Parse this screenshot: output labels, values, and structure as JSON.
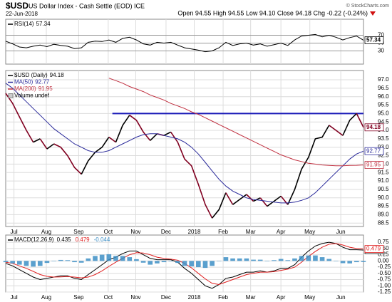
{
  "header": {
    "symbol": "$USD",
    "name": "US Dollar Index - Cash Settle (EOD) ICE",
    "date": "22-Jun-2018",
    "quote": "Open 94.55 High 94.55 Low 94.10 Close 94.18 Chg -0.22 (-0.24%)",
    "credit": "© StockCharts.com"
  },
  "chart_data": [
    {
      "type": "line",
      "xlim": [
        0,
        52
      ],
      "ylim": [
        -3.6,
        110.9
      ],
      "yticks": [
        30,
        50,
        70
      ],
      "grid": true,
      "series": [
        {
          "name": "RSI(14)",
          "color": "#000000",
          "values": [
            55,
            48,
            40,
            38,
            42,
            45,
            41,
            47,
            44,
            42,
            36,
            38,
            52,
            55,
            54,
            58,
            52,
            62,
            65,
            58,
            48,
            45,
            52,
            50,
            52,
            45,
            38,
            35,
            32,
            28,
            30,
            38,
            52,
            44,
            48,
            50,
            45,
            48,
            42,
            46,
            50,
            44,
            58,
            68,
            70,
            72,
            66,
            70,
            65,
            58,
            64,
            68,
            57.34
          ]
        }
      ]
    },
    {
      "type": "line",
      "xlim": [
        0,
        52
      ],
      "ylim": [
        88.3,
        97.55
      ],
      "grid": true,
      "yticks": [
        88.5,
        {
          "value": 89,
          "label": "89.0"
        },
        89.5,
        {
          "value": 90,
          "label": "90.0"
        },
        90.5,
        {
          "value": 91,
          "label": "91.0"
        },
        91.5,
        {
          "value": 92,
          "label": "92.0"
        },
        92.5,
        {
          "value": 93,
          "label": "93.0"
        },
        93.5,
        {
          "value": 94,
          "label": "94.0"
        },
        94.5,
        {
          "value": 95,
          "label": "95.0"
        },
        95.5,
        {
          "value": 96,
          "label": "96.0"
        },
        96.5,
        {
          "value": 97,
          "label": "97.0"
        }
      ],
      "xticks": [
        {
          "value": 1.2,
          "label": "Jul"
        },
        {
          "value": 5.9,
          "label": "Aug"
        },
        {
          "value": 10.6,
          "label": "Sep"
        },
        {
          "value": 14.9,
          "label": "Oct"
        },
        {
          "value": 18.9,
          "label": "Nov"
        },
        {
          "value": 23.3,
          "label": "Dec"
        },
        {
          "value": 27.4,
          "label": "2018"
        },
        {
          "value": 31.6,
          "label": "Feb"
        },
        {
          "value": 35.6,
          "label": "Mar"
        },
        {
          "value": 40,
          "label": "Apr"
        },
        {
          "value": 44.2,
          "label": "May"
        },
        {
          "value": 48.7,
          "label": "Jun"
        }
      ],
      "series": [
        {
          "name": "$USD (Daily)",
          "color": "#800020",
          "up_color": "#000000",
          "values": [
            96.2,
            95.6,
            94.8,
            94.0,
            93.3,
            93.5,
            92.9,
            93.2,
            93.0,
            92.5,
            91.8,
            91.4,
            92.2,
            92.7,
            93.0,
            93.6,
            93.3,
            94.3,
            94.9,
            94.6,
            93.9,
            93.4,
            93.8,
            93.7,
            93.9,
            93.3,
            92.3,
            91.9,
            90.8,
            89.6,
            88.8,
            89.3,
            90.3,
            89.6,
            89.9,
            90.2,
            89.8,
            90.0,
            89.5,
            89.8,
            90.1,
            89.6,
            90.5,
            91.7,
            92.4,
            93.5,
            93.6,
            94.3,
            94.0,
            93.7,
            94.6,
            95.0,
            94.18
          ]
        },
        {
          "name": "MA(50)",
          "color": "#2a2a9a",
          "values": [
            96.8,
            96.5,
            96.1,
            95.7,
            95.3,
            94.9,
            94.5,
            94.1,
            93.8,
            93.5,
            93.2,
            93.0,
            92.8,
            92.7,
            92.7,
            92.8,
            93.0,
            93.2,
            93.4,
            93.6,
            93.75,
            93.8,
            93.8,
            93.7,
            93.6,
            93.5,
            93.3,
            93.0,
            92.6,
            92.1,
            91.6,
            91.1,
            90.7,
            90.4,
            90.2,
            90.0,
            89.9,
            89.85,
            89.8,
            89.75,
            89.7,
            89.7,
            89.75,
            89.85,
            90.0,
            90.3,
            90.7,
            91.1,
            91.5,
            91.9,
            92.3,
            92.6,
            92.77
          ]
        },
        {
          "name": "MA(200)",
          "color": "#c03040",
          "values": [
            null,
            null,
            null,
            null,
            null,
            null,
            null,
            null,
            null,
            null,
            null,
            null,
            null,
            null,
            null,
            97.1,
            96.95,
            96.8,
            96.6,
            96.45,
            96.3,
            96.1,
            95.95,
            95.8,
            95.6,
            95.45,
            95.3,
            95.1,
            94.95,
            94.75,
            94.55,
            94.35,
            94.15,
            93.95,
            93.75,
            93.55,
            93.35,
            93.15,
            92.95,
            92.75,
            92.55,
            92.4,
            92.25,
            92.15,
            92.05,
            92.0,
            91.95,
            91.92,
            91.9,
            91.9,
            91.92,
            91.93,
            91.95
          ]
        }
      ],
      "legend_extra": "Volume undef",
      "reference_line": {
        "y": 95,
        "x": [
          15.5,
          52
        ],
        "color": "#1a1ab8"
      }
    },
    {
      "type": "line",
      "xlim": [
        0,
        52
      ],
      "ylim": [
        -1.25,
        1.04
      ],
      "grid": true,
      "yticks": [
        0.75,
        {
          "value": 0.5,
          "label": "0.50"
        },
        0.25,
        {
          "value": 0,
          "label": "0.00"
        },
        -0.25,
        {
          "value": -0.5,
          "label": "-0.50"
        },
        -0.75,
        {
          "value": -1,
          "label": "-1.00"
        },
        -1.25
      ],
      "xticks": [
        {
          "value": 1.2,
          "label": "Jul"
        },
        {
          "value": 5.9,
          "label": "Aug"
        },
        {
          "value": 10.6,
          "label": "Sep"
        },
        {
          "value": 14.9,
          "label": "Oct"
        },
        {
          "value": 18.9,
          "label": "Nov"
        },
        {
          "value": 23.3,
          "label": "Dec"
        },
        {
          "value": 27.4,
          "label": "2018"
        },
        {
          "value": 31.6,
          "label": "Feb"
        },
        {
          "value": 35.6,
          "label": "Mar"
        },
        {
          "value": 40,
          "label": "Apr"
        },
        {
          "value": 44.2,
          "label": "May"
        },
        {
          "value": 48.7,
          "label": "Jun"
        }
      ],
      "series": [
        {
          "name": "MACD(12,26,9)",
          "color": "#000000",
          "values": [
            -0.1,
            -0.2,
            -0.35,
            -0.5,
            -0.65,
            -0.75,
            -0.7,
            -0.65,
            -0.6,
            -0.6,
            -0.7,
            -0.75,
            -0.55,
            -0.35,
            -0.15,
            0.05,
            0.15,
            0.3,
            0.4,
            0.4,
            0.25,
            0.1,
            0.05,
            0.05,
            0.05,
            -0.05,
            -0.3,
            -0.5,
            -0.75,
            -1.0,
            -1.1,
            -0.95,
            -0.7,
            -0.65,
            -0.55,
            -0.45,
            -0.45,
            -0.4,
            -0.45,
            -0.4,
            -0.3,
            -0.3,
            -0.15,
            0.15,
            0.4,
            0.6,
            0.7,
            0.75,
            0.7,
            0.55,
            0.45,
            0.45,
            0.435
          ]
        },
        {
          "color": "#e02020",
          "values": [
            -0.05,
            -0.1,
            -0.2,
            -0.3,
            -0.42,
            -0.55,
            -0.62,
            -0.65,
            -0.64,
            -0.63,
            -0.65,
            -0.68,
            -0.65,
            -0.55,
            -0.4,
            -0.22,
            -0.05,
            0.1,
            0.25,
            0.33,
            0.32,
            0.25,
            0.15,
            0.1,
            0.07,
            0.03,
            -0.1,
            -0.28,
            -0.5,
            -0.72,
            -0.9,
            -0.95,
            -0.85,
            -0.75,
            -0.65,
            -0.55,
            -0.5,
            -0.45,
            -0.45,
            -0.43,
            -0.38,
            -0.33,
            -0.25,
            -0.05,
            0.18,
            0.38,
            0.55,
            0.67,
            0.7,
            0.64,
            0.55,
            0.5,
            0.479
          ]
        },
        {
          "type": "bar",
          "color": "#3d8fc6",
          "values": [
            -0.05,
            -0.1,
            -0.15,
            -0.2,
            -0.23,
            -0.2,
            -0.08,
            0,
            0.04,
            0.03,
            -0.05,
            -0.07,
            0.1,
            0.2,
            0.25,
            0.27,
            0.2,
            0.2,
            0.15,
            0.07,
            -0.07,
            -0.15,
            -0.1,
            -0.05,
            -0.02,
            -0.08,
            -0.2,
            -0.22,
            -0.25,
            -0.28,
            -0.2,
            0,
            0.15,
            0.1,
            0.1,
            0.1,
            0.05,
            0.05,
            0,
            0.03,
            0.08,
            0.03,
            0.1,
            0.2,
            0.22,
            0.22,
            0.15,
            0.08,
            0,
            -0.09,
            -0.1,
            -0.05,
            -0.044
          ]
        }
      ]
    }
  ]
}
